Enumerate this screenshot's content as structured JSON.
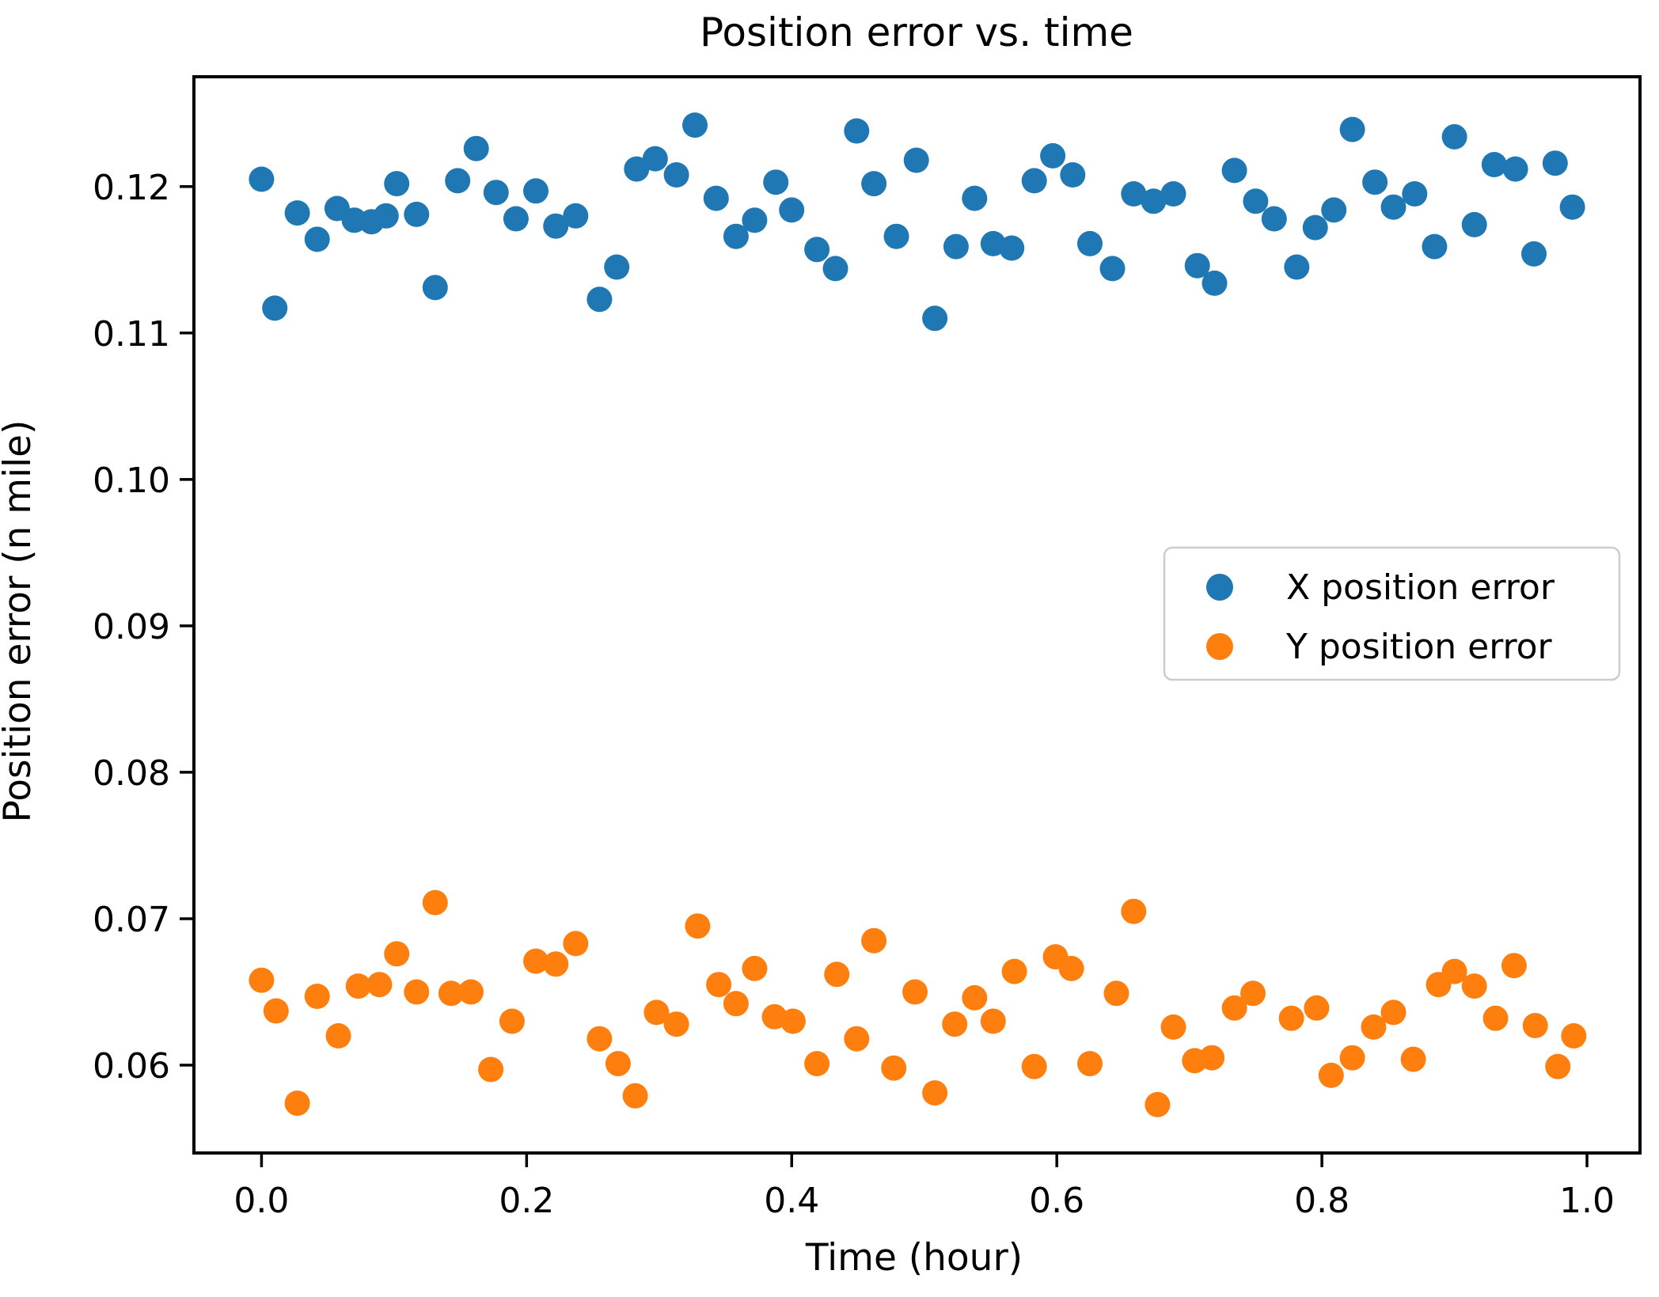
{
  "figure": {
    "title": "Position error vs. time",
    "xlabel": "Time (hour)",
    "ylabel": "Position error (n mile)"
  },
  "legend": {
    "items": [
      {
        "label": "X position error",
        "color": "#1f77b4"
      },
      {
        "label": "Y position error",
        "color": "#ff7f0e"
      }
    ]
  },
  "chart_data": {
    "type": "scatter",
    "title": "Position error vs. time",
    "xlabel": "Time (hour)",
    "ylabel": "Position error (n mile)",
    "xlim": [
      -0.051,
      1.04
    ],
    "ylim": [
      0.054,
      0.1275
    ],
    "xticks": [
      0.0,
      0.2,
      0.4,
      0.6,
      0.8,
      1.0
    ],
    "xtick_labels": [
      "0.0",
      "0.2",
      "0.4",
      "0.6",
      "0.8",
      "1.0"
    ],
    "yticks": [
      0.06,
      0.07,
      0.08,
      0.09,
      0.1,
      0.11,
      0.12
    ],
    "ytick_labels": [
      "0.06",
      "0.07",
      "0.08",
      "0.09",
      "0.10",
      "0.11",
      "0.12"
    ],
    "grid": false,
    "legend_position": "center right",
    "marker": "circle",
    "series": [
      {
        "name": "X position error",
        "color": "#1f77b4",
        "points": [
          [
            0.0,
            0.1205
          ],
          [
            0.01,
            0.1117
          ],
          [
            0.027,
            0.1182
          ],
          [
            0.042,
            0.1164
          ],
          [
            0.057,
            0.1185
          ],
          [
            0.07,
            0.1177
          ],
          [
            0.083,
            0.1176
          ],
          [
            0.094,
            0.118
          ],
          [
            0.102,
            0.1202
          ],
          [
            0.117,
            0.1181
          ],
          [
            0.131,
            0.1131
          ],
          [
            0.148,
            0.1204
          ],
          [
            0.162,
            0.1226
          ],
          [
            0.177,
            0.1196
          ],
          [
            0.192,
            0.1178
          ],
          [
            0.207,
            0.1197
          ],
          [
            0.222,
            0.1173
          ],
          [
            0.237,
            0.118
          ],
          [
            0.255,
            0.1123
          ],
          [
            0.268,
            0.1145
          ],
          [
            0.283,
            0.1212
          ],
          [
            0.297,
            0.1219
          ],
          [
            0.313,
            0.1208
          ],
          [
            0.327,
            0.1242
          ],
          [
            0.343,
            0.1192
          ],
          [
            0.358,
            0.1166
          ],
          [
            0.372,
            0.1177
          ],
          [
            0.388,
            0.1203
          ],
          [
            0.4,
            0.1184
          ],
          [
            0.419,
            0.1157
          ],
          [
            0.433,
            0.1144
          ],
          [
            0.449,
            0.1238
          ],
          [
            0.462,
            0.1202
          ],
          [
            0.479,
            0.1166
          ],
          [
            0.494,
            0.1218
          ],
          [
            0.508,
            0.111
          ],
          [
            0.524,
            0.1159
          ],
          [
            0.538,
            0.1192
          ],
          [
            0.552,
            0.1161
          ],
          [
            0.566,
            0.1158
          ],
          [
            0.583,
            0.1204
          ],
          [
            0.597,
            0.1221
          ],
          [
            0.612,
            0.1208
          ],
          [
            0.625,
            0.1161
          ],
          [
            0.642,
            0.1144
          ],
          [
            0.658,
            0.1195
          ],
          [
            0.673,
            0.119
          ],
          [
            0.688,
            0.1195
          ],
          [
            0.706,
            0.1146
          ],
          [
            0.719,
            0.1134
          ],
          [
            0.734,
            0.1211
          ],
          [
            0.75,
            0.119
          ],
          [
            0.764,
            0.1178
          ],
          [
            0.781,
            0.1145
          ],
          [
            0.795,
            0.1172
          ],
          [
            0.809,
            0.1184
          ],
          [
            0.823,
            0.1239
          ],
          [
            0.84,
            0.1203
          ],
          [
            0.854,
            0.1186
          ],
          [
            0.87,
            0.1195
          ],
          [
            0.885,
            0.1159
          ],
          [
            0.9,
            0.1234
          ],
          [
            0.915,
            0.1174
          ],
          [
            0.93,
            0.1215
          ],
          [
            0.946,
            0.1212
          ],
          [
            0.96,
            0.1154
          ],
          [
            0.976,
            0.1216
          ],
          [
            0.989,
            0.1186
          ]
        ]
      },
      {
        "name": "Y position error",
        "color": "#ff7f0e",
        "points": [
          [
            0.0,
            0.0658
          ],
          [
            0.011,
            0.0637
          ],
          [
            0.027,
            0.0574
          ],
          [
            0.042,
            0.0647
          ],
          [
            0.058,
            0.062
          ],
          [
            0.073,
            0.0654
          ],
          [
            0.089,
            0.0655
          ],
          [
            0.102,
            0.0676
          ],
          [
            0.117,
            0.065
          ],
          [
            0.131,
            0.0711
          ],
          [
            0.143,
            0.0649
          ],
          [
            0.158,
            0.065
          ],
          [
            0.173,
            0.0597
          ],
          [
            0.189,
            0.063
          ],
          [
            0.207,
            0.0671
          ],
          [
            0.222,
            0.0669
          ],
          [
            0.237,
            0.0683
          ],
          [
            0.255,
            0.0618
          ],
          [
            0.269,
            0.0601
          ],
          [
            0.282,
            0.0579
          ],
          [
            0.298,
            0.0636
          ],
          [
            0.313,
            0.0628
          ],
          [
            0.329,
            0.0695
          ],
          [
            0.345,
            0.0655
          ],
          [
            0.358,
            0.0642
          ],
          [
            0.372,
            0.0666
          ],
          [
            0.387,
            0.0633
          ],
          [
            0.401,
            0.063
          ],
          [
            0.419,
            0.0601
          ],
          [
            0.434,
            0.0662
          ],
          [
            0.449,
            0.0618
          ],
          [
            0.462,
            0.0685
          ],
          [
            0.477,
            0.0598
          ],
          [
            0.493,
            0.065
          ],
          [
            0.508,
            0.0581
          ],
          [
            0.523,
            0.0628
          ],
          [
            0.538,
            0.0646
          ],
          [
            0.552,
            0.063
          ],
          [
            0.568,
            0.0664
          ],
          [
            0.583,
            0.0599
          ],
          [
            0.599,
            0.0674
          ],
          [
            0.611,
            0.0666
          ],
          [
            0.625,
            0.0601
          ],
          [
            0.645,
            0.0649
          ],
          [
            0.658,
            0.0705
          ],
          [
            0.676,
            0.0573
          ],
          [
            0.688,
            0.0626
          ],
          [
            0.704,
            0.0603
          ],
          [
            0.717,
            0.0605
          ],
          [
            0.734,
            0.0639
          ],
          [
            0.748,
            0.0649
          ],
          [
            0.777,
            0.0632
          ],
          [
            0.796,
            0.0639
          ],
          [
            0.807,
            0.0593
          ],
          [
            0.823,
            0.0605
          ],
          [
            0.839,
            0.0626
          ],
          [
            0.854,
            0.0636
          ],
          [
            0.869,
            0.0604
          ],
          [
            0.888,
            0.0655
          ],
          [
            0.9,
            0.0664
          ],
          [
            0.915,
            0.0654
          ],
          [
            0.931,
            0.0632
          ],
          [
            0.945,
            0.0668
          ],
          [
            0.961,
            0.0627
          ],
          [
            0.978,
            0.0599
          ],
          [
            0.99,
            0.062
          ]
        ]
      }
    ]
  }
}
